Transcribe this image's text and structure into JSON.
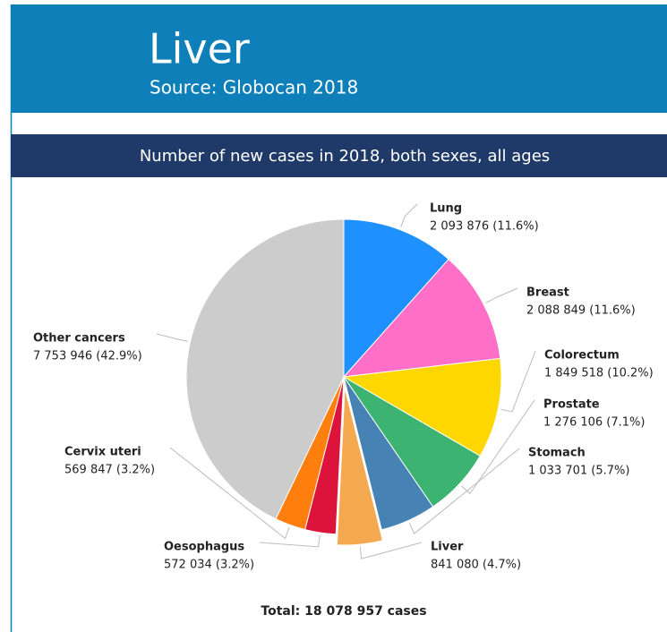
{
  "chart_data": {
    "type": "pie",
    "title": "Liver",
    "subtitle": "Source: Globocan 2018",
    "heading": "Number of new cases in 2018, both sexes, all ages",
    "categories": [
      "Lung",
      "Breast",
      "Colorectum",
      "Prostate",
      "Stomach",
      "Liver",
      "Oesophagus",
      "Cervix uteri",
      "Other cancers"
    ],
    "values": [
      2093876,
      2088849,
      1849518,
      1276106,
      1033701,
      841080,
      572034,
      569847,
      7753946
    ],
    "value_labels": [
      "2 093 876 (11.6%)",
      "2 088 849 (11.6%)",
      "1 849 518 (10.2%)",
      "1 276 106 (7.1%)",
      "1 033 701 (5.7%)",
      "841 080 (4.7%)",
      "572 034 (3.2%)",
      "569 847 (3.2%)",
      "7 753 946 (42.9%)"
    ],
    "colors": [
      "#1e90ff",
      "#ff6ec7",
      "#ffd700",
      "#3cb371",
      "#4682b4",
      "#f4a950",
      "#dc143c",
      "#ff7f0e",
      "#cccccc"
    ],
    "exploded": "Liver",
    "total": "Total: 18 078 957 cases"
  }
}
